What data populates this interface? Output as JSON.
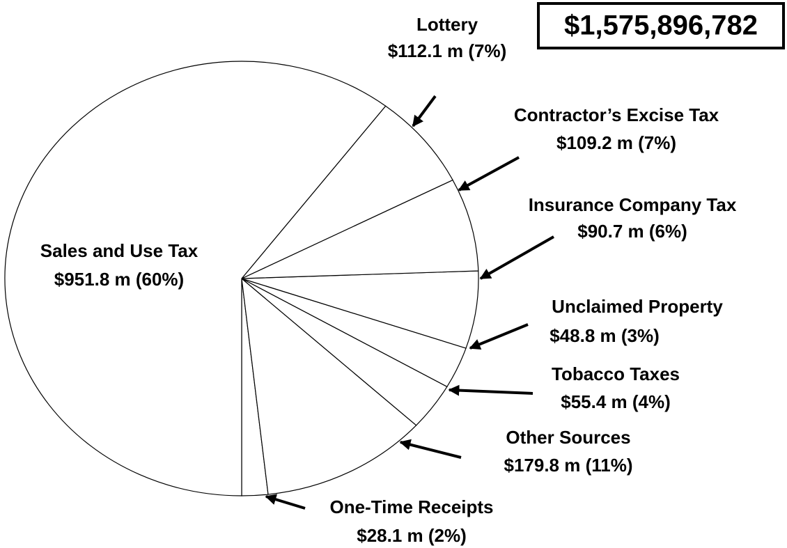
{
  "chart_data": {
    "type": "pie",
    "total": "$1,575,896,782",
    "categories": [
      "One-Time Receipts",
      "Other Sources",
      "Tobacco Taxes",
      "Unclaimed Property",
      "Insurance Company Tax",
      "Contractor’s Excise Tax",
      "Lottery",
      "Sales and Use Tax"
    ],
    "values": [
      28.1,
      179.8,
      55.4,
      48.8,
      90.7,
      109.2,
      112.1,
      951.8
    ],
    "value_labels": [
      "$28.1 m  (2%)",
      "$179.8 m  (11%)",
      "$55.4 m  (4%)",
      "$48.8 m  (3%)",
      "$90.7 m  (6%)",
      "$109.2 m  (7%)",
      "$112.1 m  (7%)",
      "$951.8 m  (60%)"
    ],
    "color": "#ffffff"
  }
}
